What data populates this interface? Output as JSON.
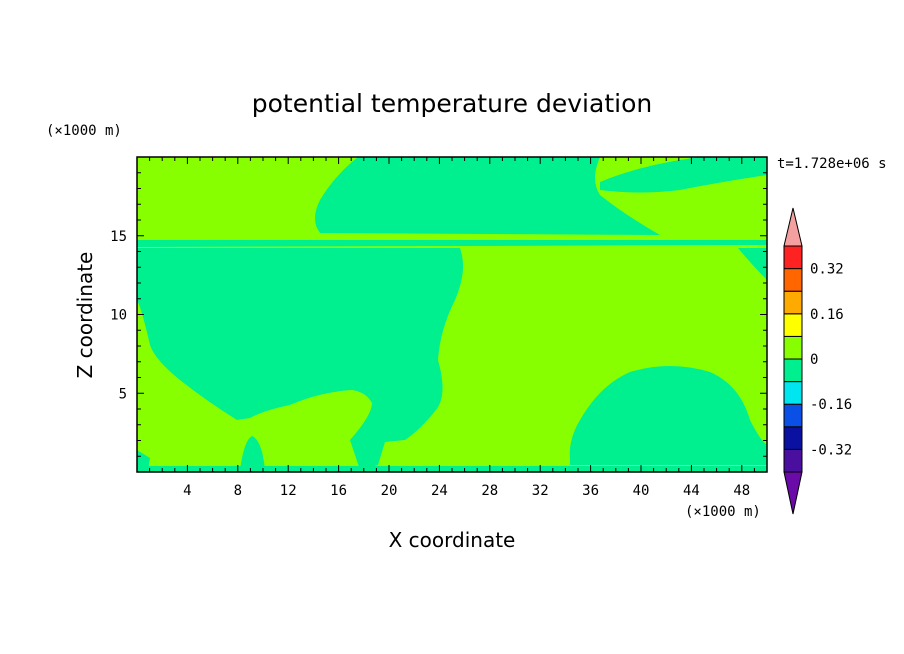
{
  "chart_data": {
    "type": "heatmap",
    "title": "potential temperature deviation",
    "xlabel": "X coordinate",
    "ylabel": "Z coordinate",
    "x_unit": "(×1000 m)",
    "z_unit": "(×1000 m)",
    "time_label": "t=1.728e+06 s",
    "xlim": [
      0,
      50
    ],
    "ylim": [
      0,
      20
    ],
    "x_ticks": [
      "4",
      "8",
      "12",
      "16",
      "20",
      "24",
      "28",
      "32",
      "36",
      "40",
      "44",
      "48"
    ],
    "y_ticks": [
      "5",
      "10",
      "15"
    ],
    "colorbar": {
      "levels": [
        -0.4,
        -0.32,
        -0.24,
        -0.16,
        -0.08,
        0,
        0.08,
        0.16,
        0.24,
        0.32,
        0.4
      ],
      "colors": [
        "#4b0fa0",
        "#0a10a0",
        "#0a50e6",
        "#00e6f0",
        "#00f090",
        "#88ff00",
        "#ffff00",
        "#ffaa00",
        "#ff6600",
        "#ff2222"
      ],
      "under_color": "#6a0aa8",
      "over_color": "#f4a0a0",
      "labels": [
        "-0.32",
        "-0.16",
        "0",
        "0.16",
        "0.32"
      ]
    },
    "dominant_ranges": [
      {
        "range": "0 to 0.08",
        "color": "#88ff00"
      },
      {
        "range": "-0.08 to 0",
        "color": "#00f090"
      }
    ]
  }
}
